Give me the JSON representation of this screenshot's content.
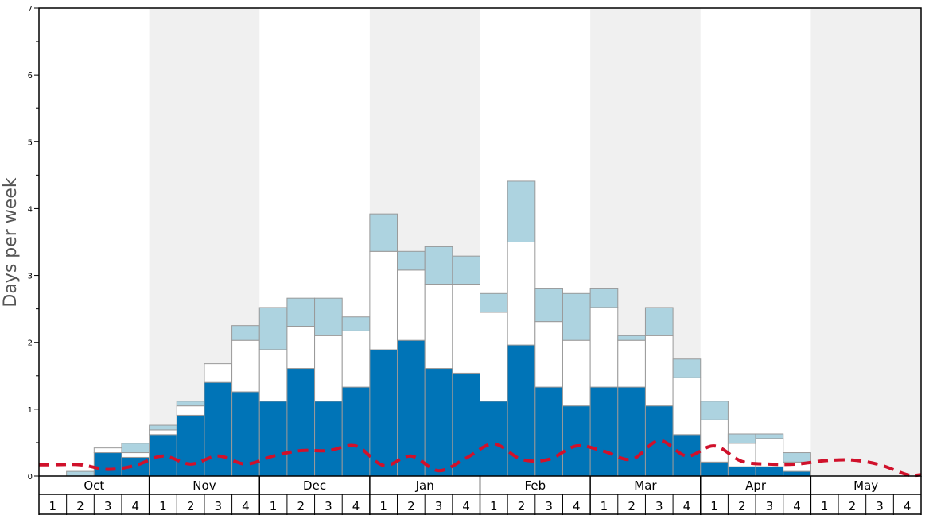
{
  "chart_data": {
    "type": "bar",
    "ylabel": "Days per week",
    "ylim": [
      0,
      7
    ],
    "y_ticks": [
      "0",
      "1",
      "2",
      "3",
      "4",
      "5",
      "6",
      "7"
    ],
    "months": [
      "Oct",
      "Nov",
      "Dec",
      "Jan",
      "Feb",
      "Mar",
      "Apr",
      "May"
    ],
    "week_labels": [
      "1",
      "2",
      "3",
      "4"
    ],
    "colors": {
      "dark": "#0074b7",
      "white": "#ffffff",
      "light": "#add3e0",
      "line": "#d0112b",
      "shade": "#f0f0f0",
      "bar_stroke": "#999999"
    },
    "series": [
      {
        "values": [
          0,
          0,
          0.35,
          0.28,
          0.62,
          0.91,
          1.4,
          1.26,
          1.12,
          1.61,
          1.12,
          1.33,
          1.89,
          2.03,
          1.61,
          1.54,
          1.12,
          1.96,
          1.33,
          1.05,
          1.33,
          1.33,
          1.05,
          0.62,
          0.21,
          0.14,
          0.14,
          0.07,
          0,
          0,
          0,
          0
        ]
      },
      {
        "values": [
          0,
          0,
          0.07,
          0.07,
          0.07,
          0.14,
          0.28,
          0.77,
          0.77,
          0.63,
          0.98,
          0.84,
          1.47,
          1.05,
          1.26,
          1.33,
          1.33,
          1.54,
          0.98,
          0.98,
          1.19,
          0.7,
          1.05,
          0.85,
          0.63,
          0.35,
          0.42,
          0.14,
          0,
          0,
          0,
          0
        ]
      },
      {
        "values": [
          0,
          0.07,
          0,
          0.14,
          0.07,
          0.07,
          0,
          0.22,
          0.63,
          0.42,
          0.56,
          0.21,
          0.56,
          0.28,
          0.56,
          0.42,
          0.28,
          0.91,
          0.49,
          0.7,
          0.28,
          0.07,
          0.42,
          0.28,
          0.28,
          0.14,
          0.07,
          0.14,
          0,
          0,
          0,
          0
        ]
      },
      {
        "values": [
          0.17,
          0.17,
          0.1,
          0.16,
          0.3,
          0.18,
          0.3,
          0.18,
          0.3,
          0.38,
          0.38,
          0.45,
          0.16,
          0.3,
          0.08,
          0.27,
          0.48,
          0.25,
          0.25,
          0.45,
          0.37,
          0.25,
          0.53,
          0.3,
          0.45,
          0.22,
          0.18,
          0.18,
          0.23,
          0.24,
          0.17,
          0.02
        ]
      }
    ]
  }
}
